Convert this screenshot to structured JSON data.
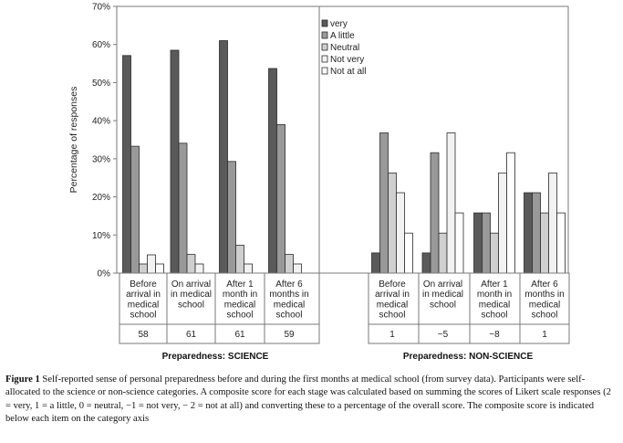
{
  "chart_data": {
    "type": "bar",
    "ylabel": "Percentage of responses",
    "ylim": [
      0,
      70
    ],
    "yticks": [
      "0%",
      "10%",
      "20%",
      "30%",
      "40%",
      "50%",
      "60%",
      "70%"
    ],
    "grid": false,
    "legend_position": "top-center",
    "series_names": [
      "very",
      "A little",
      "Neutral",
      "Not very",
      "Not at all"
    ],
    "series_colors": [
      "#5a5a5a",
      "#999999",
      "#cfcfcf",
      "#f2f2f2",
      "#ffffff"
    ],
    "groups": [
      {
        "label": "Preparedness: SCIENCE",
        "categories": [
          {
            "lines": [
              "Before",
              "arrival in",
              "medical",
              "school"
            ],
            "score": "58",
            "values": [
              57.1,
              33.3,
              2.4,
              4.8,
              2.4
            ]
          },
          {
            "lines": [
              "On arrival",
              "in medical",
              "school"
            ],
            "score": "61",
            "values": [
              58.5,
              34.1,
              4.9,
              2.4,
              0
            ]
          },
          {
            "lines": [
              "After 1",
              "month in",
              "medical",
              "school"
            ],
            "score": "61",
            "values": [
              61.0,
              29.3,
              7.3,
              2.4,
              0
            ]
          },
          {
            "lines": [
              "After 6",
              "months in",
              "medical",
              "school"
            ],
            "score": "59",
            "values": [
              53.7,
              39.0,
              4.9,
              2.4,
              0
            ]
          }
        ]
      },
      {
        "label": "Preparedness: NON-SCIENCE",
        "categories": [
          {
            "lines": [
              "Before",
              "arrival in",
              "medical",
              "school"
            ],
            "score": "1",
            "values": [
              5.3,
              36.8,
              26.3,
              21.1,
              10.5
            ]
          },
          {
            "lines": [
              "On arrival",
              "in medical",
              "school"
            ],
            "score": "−5",
            "values": [
              5.3,
              31.6,
              10.5,
              36.8,
              15.8
            ]
          },
          {
            "lines": [
              "After 1",
              "month in",
              "medical",
              "school"
            ],
            "score": "−8",
            "values": [
              15.8,
              15.8,
              10.5,
              26.3,
              31.6
            ]
          },
          {
            "lines": [
              "After 6",
              "months in",
              "medical",
              "school"
            ],
            "score": "1",
            "values": [
              21.1,
              21.1,
              15.8,
              26.3,
              15.8
            ]
          }
        ]
      }
    ]
  },
  "caption": {
    "label": "Figure 1",
    "text": "Self-reported sense of personal preparedness before and during the first months at medical school (from survey data). Participants were self-allocated to the science or non-science categories. A composite score for each stage was calculated based on summing the scores of Likert scale responses (2 = very, 1 = a little, 0 = neutral, −1 = not very, − 2 = not at all) and converting these to a percentage of the overall score. The composite score is indicated below each item on the category axis"
  }
}
